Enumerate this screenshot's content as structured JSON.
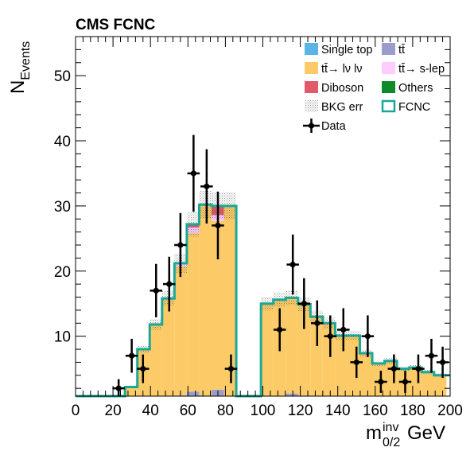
{
  "chart_data": {
    "type": "bar",
    "title": "CMS FCNC",
    "xlabel": "m",
    "xlabel_sup": "inv",
    "xlabel_sub": "0/2",
    "xlabel_unit": "GeV",
    "ylabel": "N",
    "ylabel_sub": "Events",
    "xlim": [
      0,
      200
    ],
    "ylim": [
      0.8,
      56
    ],
    "xticks": [
      0,
      20,
      40,
      60,
      80,
      100,
      120,
      140,
      160,
      180,
      200
    ],
    "xtick_labels": [
      "0",
      "20",
      "40",
      "60",
      "80",
      "100",
      "120",
      "140",
      "160",
      "180",
      "200"
    ],
    "yticks": [
      10,
      20,
      30,
      40,
      50
    ],
    "ytick_labels": [
      "10",
      "20",
      "30",
      "40",
      "50"
    ],
    "bin_width": 6.6,
    "bin_edges": [
      0,
      6.6,
      13.2,
      19.8,
      26.4,
      33,
      39.6,
      46.2,
      52.8,
      59.4,
      66,
      72.6,
      79.2,
      85.8,
      92.4,
      99,
      105.6,
      112.2,
      118.8,
      125.4,
      132,
      138.6,
      145.2,
      151.8,
      158.4,
      165,
      171.6,
      178.2,
      184.8,
      191.4,
      198
    ],
    "series": [
      {
        "name": "Single top",
        "color": "#5ab4e6",
        "values": [
          0,
          0,
          0,
          0,
          0,
          0,
          0,
          0,
          0,
          0,
          0,
          0,
          0,
          0,
          0,
          0,
          0,
          0,
          0,
          0,
          0,
          0,
          0,
          0,
          0,
          0,
          0,
          0,
          0,
          0
        ]
      },
      {
        "name": "tt̄",
        "color": "#9c9ccc",
        "values": [
          0,
          0,
          0,
          0,
          0,
          0.2,
          0.5,
          0.6,
          0.9,
          1.5,
          0.9,
          1.8,
          0,
          0,
          0,
          0.6,
          0.8,
          1.2,
          0.9,
          0.6,
          0.3,
          0.5,
          0.3,
          0.2,
          0,
          0.2,
          0.2,
          0,
          0.2,
          0
        ]
      },
      {
        "name": "tt̄→ lν lν",
        "color": "#fccb67",
        "values": [
          0,
          0,
          0,
          0,
          2.2,
          7.8,
          11.3,
          15.2,
          19.8,
          24.3,
          29.3,
          25.9,
          30,
          0,
          0,
          14.4,
          14.8,
          14.7,
          14.0,
          12.4,
          11.7,
          9.6,
          9.8,
          7.2,
          5.8,
          6.0,
          4.8,
          5.2,
          4.3,
          4.0
        ]
      },
      {
        "name": "tt̄→ s-lep",
        "color": "#ffccff",
        "values": [
          0,
          0,
          0,
          0,
          0,
          0,
          0,
          0,
          0.5,
          0.9,
          0,
          0.9,
          0,
          0,
          0,
          0,
          0,
          0,
          0,
          0,
          0,
          0,
          0,
          0,
          0,
          0,
          0,
          0,
          0,
          0
        ]
      },
      {
        "name": "Diboson",
        "color": "#e05a6a",
        "values": [
          0,
          0,
          0,
          0,
          0,
          0,
          0,
          0,
          0,
          0.5,
          0,
          1.4,
          0,
          0,
          0,
          0,
          0,
          0,
          0,
          0,
          0,
          0,
          0,
          0,
          0,
          0,
          0,
          0,
          0,
          0
        ]
      },
      {
        "name": "Others",
        "color": "#0f8a2a",
        "values": [
          0,
          0,
          0,
          0,
          0,
          0,
          0,
          0,
          0,
          0,
          0,
          0,
          0,
          0,
          0,
          0,
          0,
          0,
          0,
          0,
          0,
          0,
          0,
          0,
          0,
          0,
          0,
          0,
          0,
          0
        ]
      }
    ],
    "fcnc": {
      "name": "FCNC",
      "color": "#19a898",
      "values": [
        0,
        0,
        0,
        0,
        2.2,
        8.0,
        11.8,
        15.8,
        21.2,
        27.2,
        30.2,
        30.0,
        30.0,
        0,
        0,
        15.0,
        15.6,
        15.9,
        14.9,
        13.0,
        12.0,
        10.1,
        10.1,
        7.4,
        5.8,
        6.2,
        5.0,
        5.2,
        4.5,
        4.0
      ]
    },
    "bkg_err": {
      "name": "BKG err",
      "rel": 0.07
    },
    "data": {
      "name": "Data",
      "x": [
        23,
        30,
        36,
        43,
        50,
        56,
        63,
        70,
        76,
        83,
        109,
        116,
        122,
        129,
        136,
        143,
        150,
        156,
        163,
        170,
        176,
        183,
        190,
        196
      ],
      "y": [
        2,
        7,
        5,
        17,
        18,
        24,
        35,
        33,
        27,
        5,
        11,
        21,
        15,
        12,
        10,
        11,
        6,
        10,
        3,
        5,
        3,
        5,
        7,
        6
      ],
      "yerr": [
        1.4,
        2.6,
        2.2,
        4.1,
        4.2,
        4.9,
        5.9,
        5.7,
        5.2,
        2.2,
        3.3,
        4.6,
        3.9,
        3.5,
        3.2,
        3.3,
        2.4,
        3.2,
        1.7,
        2.2,
        1.7,
        2.2,
        2.6,
        2.4
      ]
    },
    "legend": {
      "placement": "top-right",
      "columns": [
        [
          "Single top",
          "tt̄→ lν lν",
          "Diboson",
          "BKG err",
          "Data"
        ],
        [
          "tt̄",
          "tt̄→ s-lep",
          "Others",
          "FCNC"
        ]
      ]
    }
  }
}
